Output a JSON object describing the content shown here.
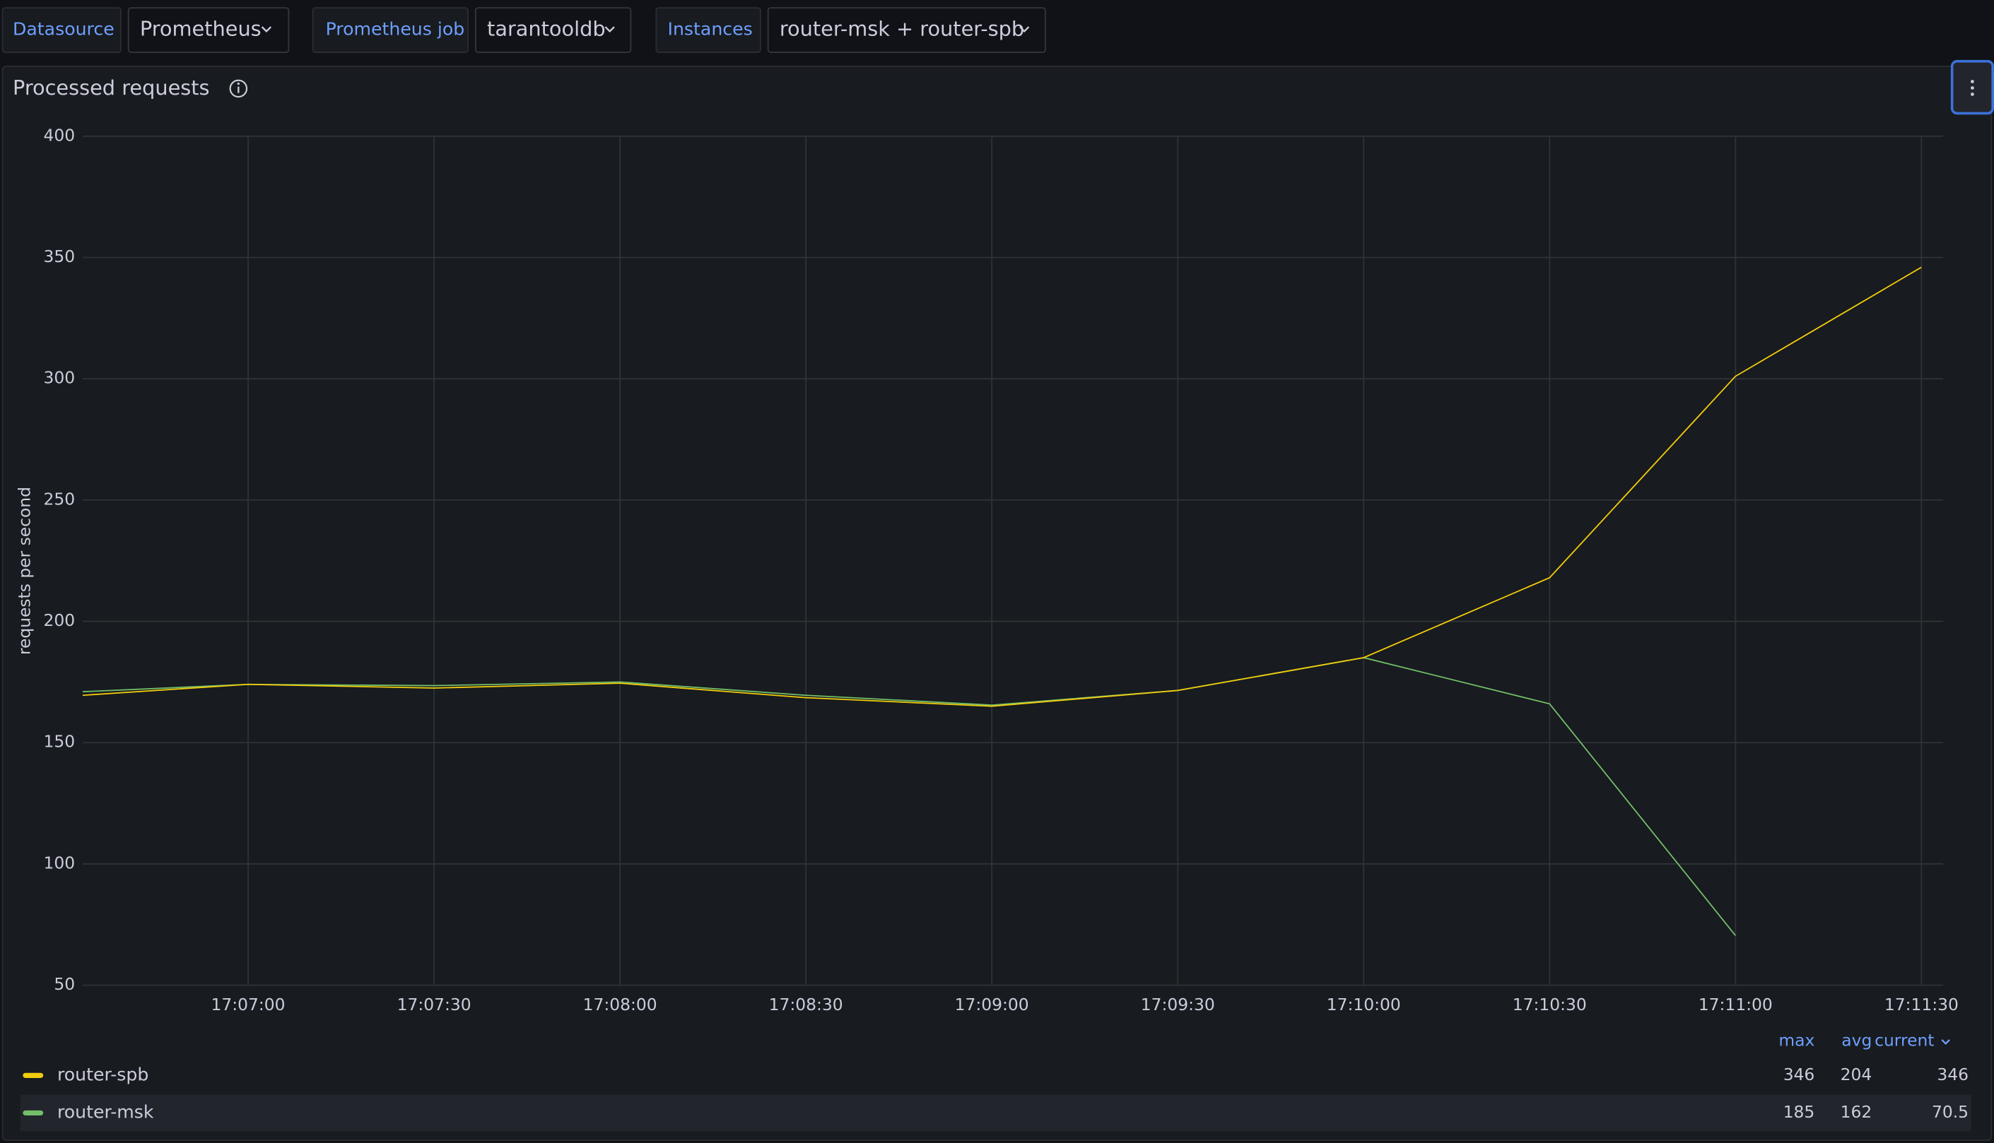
{
  "variables": [
    {
      "label": "Datasource",
      "value": "Prometheus"
    },
    {
      "label": "Prometheus job",
      "value": "tarantooldb"
    },
    {
      "label": "Instances",
      "value": "router-msk + router-spb"
    }
  ],
  "chart_data": {
    "type": "line",
    "title": "Processed requests",
    "y_label": "requests per second",
    "x": [
      393.3,
      420,
      450,
      480,
      510,
      540,
      570,
      600,
      630,
      660,
      690
    ],
    "xlim": [
      393.3,
      693.5
    ],
    "xticks": [
      {
        "value": 420,
        "label": "17:07:00"
      },
      {
        "value": 450,
        "label": "17:07:30"
      },
      {
        "value": 480,
        "label": "17:08:00"
      },
      {
        "value": 510,
        "label": "17:08:30"
      },
      {
        "value": 540,
        "label": "17:09:00"
      },
      {
        "value": 570,
        "label": "17:09:30"
      },
      {
        "value": 600,
        "label": "17:10:00"
      },
      {
        "value": 630,
        "label": "17:10:30"
      },
      {
        "value": 660,
        "label": "17:11:00"
      },
      {
        "value": 690,
        "label": "17:11:30"
      }
    ],
    "ylim": [
      50,
      400
    ],
    "yticks": [
      50,
      100,
      150,
      200,
      250,
      300,
      350,
      400
    ],
    "grid": true,
    "legend_columns": [
      "max",
      "avg",
      "current"
    ],
    "series": [
      {
        "name": "router-spb",
        "color": "#f2cc0c",
        "values": [
          169.5,
          174,
          172.5,
          174.5,
          168.5,
          165,
          171.5,
          185,
          218,
          301,
          346
        ],
        "legend_stats": [
          346,
          204,
          346
        ]
      },
      {
        "name": "router-msk",
        "color": "#73bf69",
        "values": [
          171,
          174,
          173.5,
          175,
          169.5,
          165.5,
          171.5,
          185,
          166,
          70.5,
          null
        ],
        "legend_stats": [
          185,
          162,
          70.5
        ]
      }
    ]
  }
}
